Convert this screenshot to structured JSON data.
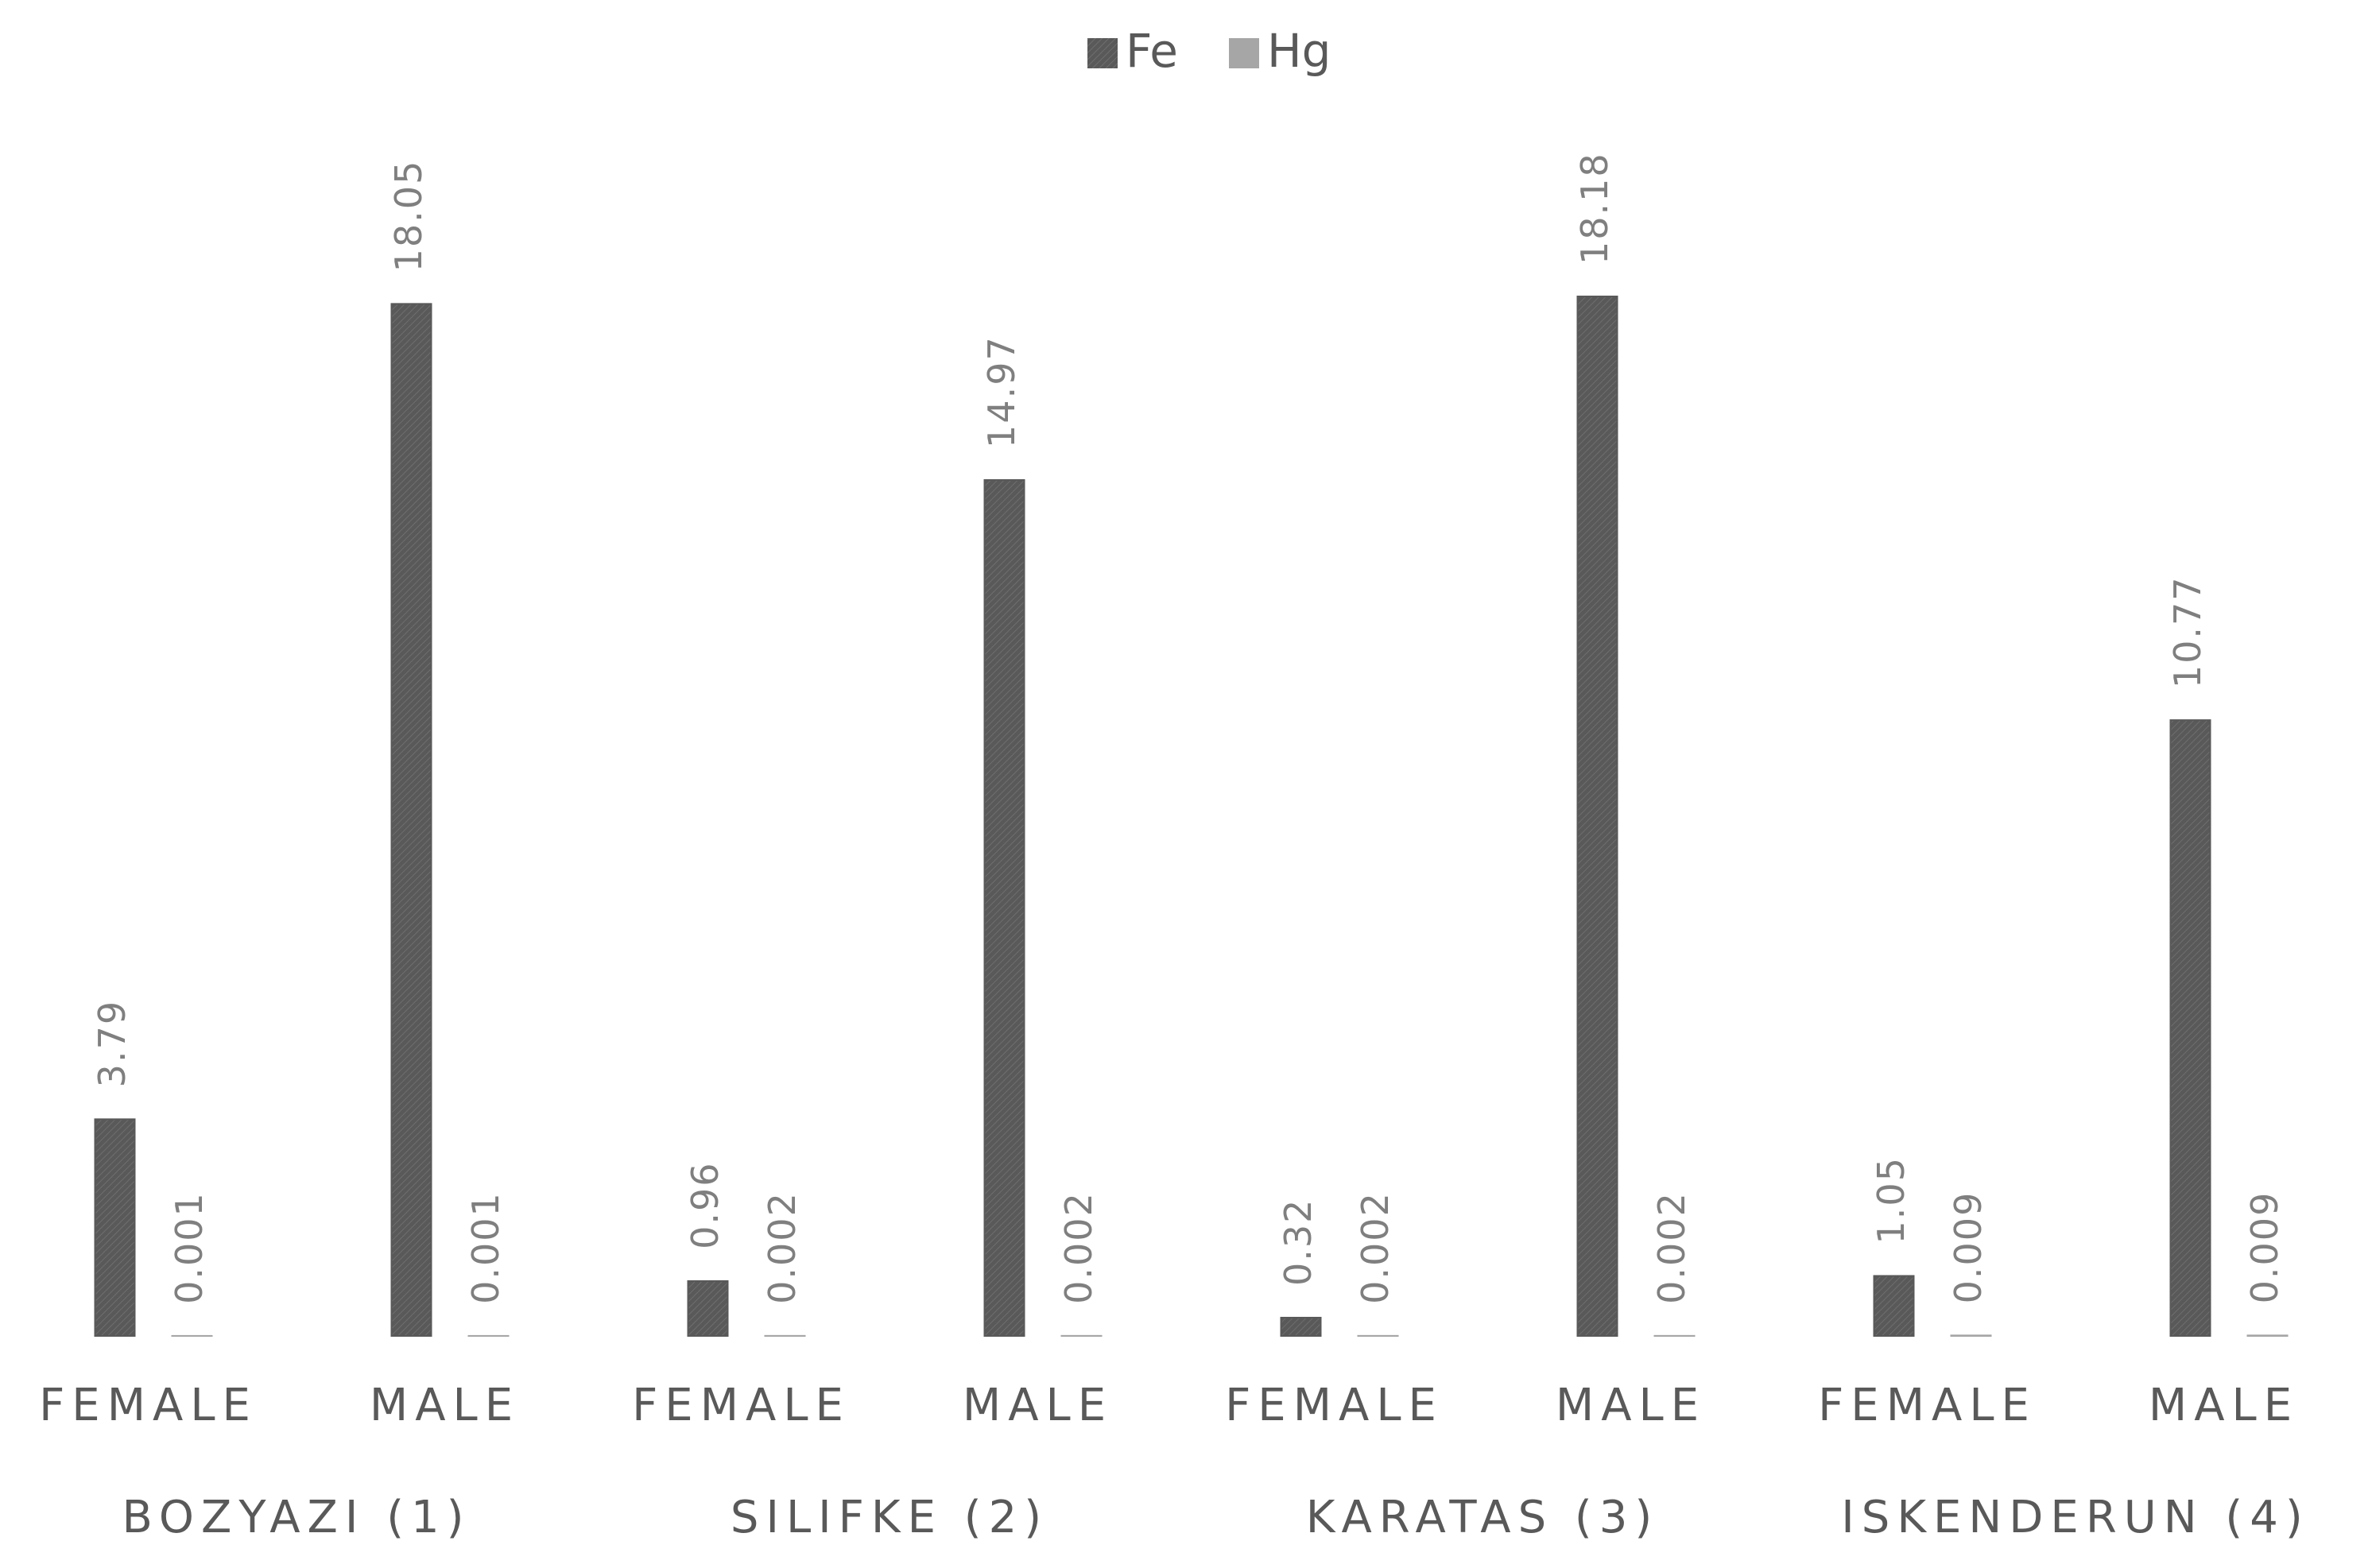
{
  "chart_data": {
    "type": "bar",
    "categories": [
      "FEMALE",
      "MALE",
      "FEMALE",
      "MALE",
      "FEMALE",
      "MALE",
      "FEMALE",
      "MALE"
    ],
    "groups": [
      "BOZYAZI (1)",
      "SILIFKE (2)",
      "KARATAS (3)",
      "ISKENDERUN (4)"
    ],
    "series": [
      {
        "name": "Fe",
        "color": "#595959",
        "values": [
          3.79,
          18.05,
          0.96,
          14.97,
          0.32,
          18.18,
          1.05,
          10.77
        ]
      },
      {
        "name": "Hg",
        "color": "#a6a6a6",
        "values": [
          0.001,
          0.001,
          0.002,
          0.002,
          0.002,
          0.002,
          0.009,
          0.009
        ]
      }
    ],
    "legend": "top"
  }
}
